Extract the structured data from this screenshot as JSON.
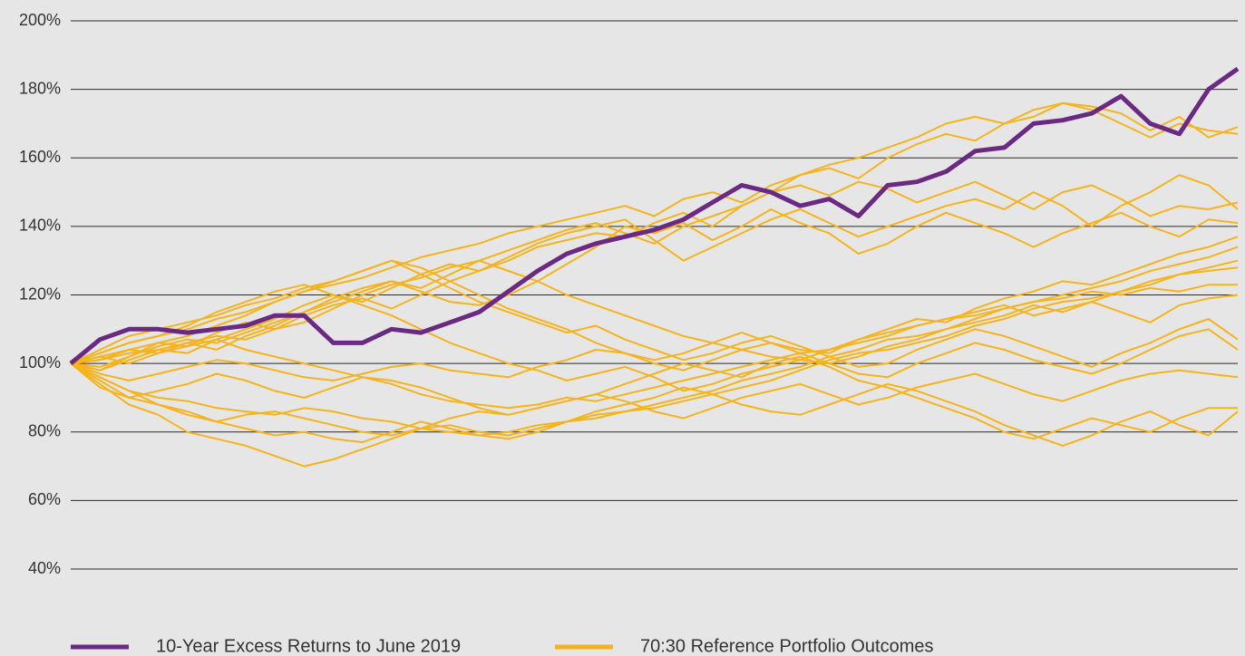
{
  "chart_data": {
    "type": "line",
    "ylim": [
      40,
      200
    ],
    "yticks": [
      {
        "value": 40,
        "label": "40%"
      },
      {
        "value": 60,
        "label": "60%"
      },
      {
        "value": 80,
        "label": "80%"
      },
      {
        "value": 100,
        "label": "100%"
      },
      {
        "value": 120,
        "label": "120%"
      },
      {
        "value": 140,
        "label": "140%"
      },
      {
        "value": 160,
        "label": "160%"
      },
      {
        "value": 180,
        "label": "180%"
      },
      {
        "value": 200,
        "label": "200%"
      }
    ],
    "grid": true,
    "legend": "bottom",
    "series": [
      {
        "name": "10-Year Excess Returns to June 2019",
        "color": "#6b2a82",
        "values": [
          100,
          107,
          110,
          110,
          109,
          110,
          111,
          114,
          114,
          106,
          106,
          110,
          109,
          112,
          115,
          121,
          127,
          132,
          135,
          137,
          139,
          142,
          147,
          152,
          150,
          146,
          148,
          143,
          152,
          153,
          156,
          162,
          163,
          170,
          171,
          173,
          178,
          170,
          167,
          180,
          186
        ]
      },
      {
        "name": "70:30 Reference Portfolio Outcomes",
        "color": "#f5b41e",
        "values": [
          100,
          103,
          106,
          108,
          110,
          113,
          115,
          118,
          121,
          123,
          125,
          128,
          131,
          133,
          135,
          138,
          140,
          142,
          144,
          146,
          143,
          148,
          150,
          147,
          152,
          155,
          158,
          160,
          163,
          166,
          170,
          172,
          170,
          174,
          176,
          175,
          173,
          168,
          172,
          166,
          169
        ]
      },
      {
        "color": "#f5b41e",
        "values": [
          100,
          101,
          104,
          106,
          105,
          109,
          112,
          110,
          114,
          117,
          119,
          116,
          120,
          124,
          127,
          130,
          134,
          136,
          138,
          137,
          141,
          144,
          140,
          146,
          150,
          155,
          157,
          154,
          160,
          164,
          167,
          165,
          170,
          172,
          176,
          174,
          170,
          166,
          170,
          168,
          167
        ]
      },
      {
        "color": "#f5b41e",
        "values": [
          100,
          99,
          102,
          105,
          107,
          106,
          109,
          112,
          115,
          118,
          121,
          124,
          122,
          126,
          130,
          133,
          136,
          139,
          141,
          138,
          135,
          140,
          143,
          146,
          150,
          152,
          149,
          153,
          151,
          147,
          150,
          153,
          149,
          145,
          150,
          152,
          148,
          143,
          146,
          145,
          147
        ]
      },
      {
        "color": "#f5b41e",
        "values": [
          100,
          98,
          101,
          104,
          103,
          107,
          110,
          113,
          117,
          120,
          118,
          122,
          126,
          129,
          127,
          131,
          135,
          138,
          140,
          142,
          136,
          130,
          134,
          138,
          142,
          145,
          141,
          137,
          140,
          143,
          146,
          148,
          145,
          150,
          146,
          140,
          146,
          150,
          155,
          152,
          145
        ]
      },
      {
        "color": "#f5b41e",
        "values": [
          100,
          102,
          100,
          103,
          106,
          104,
          108,
          111,
          115,
          119,
          122,
          124,
          121,
          118,
          117,
          120,
          124,
          129,
          134,
          140,
          138,
          141,
          136,
          140,
          145,
          141,
          138,
          132,
          135,
          140,
          144,
          141,
          138,
          134,
          138,
          141,
          144,
          140,
          137,
          142,
          141
        ]
      },
      {
        "color": "#f5b41e",
        "values": [
          100,
          97,
          95,
          97,
          99,
          101,
          100,
          98,
          96,
          95,
          97,
          99,
          100,
          98,
          97,
          96,
          99,
          101,
          104,
          103,
          100,
          98,
          101,
          104,
          106,
          104,
          103,
          107,
          110,
          113,
          112,
          116,
          119,
          121,
          124,
          123,
          126,
          129,
          132,
          134,
          137
        ]
      },
      {
        "color": "#f5b41e",
        "values": [
          100,
          95,
          90,
          88,
          86,
          83,
          85,
          86,
          84,
          82,
          80,
          79,
          81,
          82,
          80,
          79,
          81,
          83,
          84,
          86,
          88,
          90,
          92,
          95,
          97,
          99,
          102,
          104,
          107,
          108,
          110,
          113,
          116,
          118,
          120,
          122,
          124,
          127,
          129,
          131,
          134
        ]
      },
      {
        "color": "#f5b41e",
        "values": [
          100,
          96,
          92,
          90,
          89,
          87,
          86,
          85,
          87,
          86,
          84,
          83,
          81,
          80,
          79,
          80,
          82,
          83,
          85,
          86,
          87,
          89,
          91,
          93,
          95,
          98,
          101,
          103,
          104,
          106,
          108,
          111,
          113,
          116,
          118,
          119,
          121,
          124,
          126,
          128,
          130
        ]
      },
      {
        "color": "#f5b41e",
        "values": [
          100,
          101,
          103,
          104,
          106,
          108,
          107,
          110,
          112,
          116,
          120,
          123,
          125,
          128,
          130,
          127,
          124,
          120,
          117,
          114,
          111,
          108,
          106,
          104,
          102,
          101,
          100,
          102,
          105,
          107,
          110,
          112,
          114,
          117,
          115,
          118,
          121,
          123,
          126,
          127,
          128
        ]
      },
      {
        "color": "#f5b41e",
        "values": [
          100,
          102,
          104,
          103,
          105,
          107,
          104,
          102,
          100,
          98,
          96,
          94,
          91,
          89,
          88,
          87,
          88,
          90,
          89,
          91,
          93,
          95,
          97,
          99,
          101,
          103,
          104,
          106,
          108,
          111,
          113,
          114,
          116,
          118,
          119,
          121,
          120,
          122,
          121,
          123,
          123
        ]
      },
      {
        "color": "#f5b41e",
        "values": [
          100,
          103,
          106,
          108,
          111,
          115,
          118,
          121,
          123,
          120,
          117,
          114,
          110,
          106,
          103,
          100,
          98,
          95,
          97,
          99,
          96,
          92,
          94,
          97,
          99,
          101,
          104,
          107,
          109,
          111,
          113,
          115,
          117,
          114,
          116,
          118,
          115,
          112,
          117,
          119,
          120
        ]
      },
      {
        "color": "#f5b41e",
        "values": [
          100,
          104,
          108,
          110,
          112,
          114,
          117,
          119,
          122,
          124,
          127,
          130,
          126,
          122,
          118,
          115,
          112,
          109,
          111,
          107,
          104,
          101,
          103,
          106,
          108,
          105,
          102,
          99,
          100,
          104,
          107,
          110,
          108,
          105,
          102,
          99,
          103,
          106,
          110,
          113,
          107
        ]
      },
      {
        "color": "#f5b41e",
        "values": [
          100,
          98,
          102,
          106,
          108,
          111,
          114,
          118,
          121,
          124,
          127,
          130,
          128,
          124,
          120,
          116,
          113,
          110,
          106,
          103,
          101,
          103,
          106,
          109,
          106,
          103,
          100,
          97,
          96,
          100,
          103,
          106,
          104,
          101,
          99,
          97,
          100,
          104,
          108,
          110,
          104
        ]
      },
      {
        "color": "#f5b41e",
        "values": [
          100,
          93,
          90,
          92,
          94,
          97,
          95,
          92,
          90,
          93,
          96,
          95,
          93,
          90,
          87,
          85,
          87,
          89,
          91,
          89,
          86,
          84,
          87,
          90,
          92,
          94,
          91,
          88,
          90,
          93,
          95,
          97,
          94,
          91,
          89,
          92,
          95,
          97,
          98,
          97,
          96
        ]
      },
      {
        "color": "#f5b41e",
        "values": [
          100,
          94,
          88,
          85,
          80,
          78,
          76,
          73,
          70,
          72,
          75,
          78,
          81,
          84,
          86,
          85,
          87,
          89,
          91,
          94,
          97,
          100,
          98,
          96,
          100,
          102,
          99,
          95,
          93,
          90,
          87,
          84,
          80,
          78,
          81,
          84,
          82,
          80,
          84,
          87,
          87
        ]
      },
      {
        "color": "#f5b41e",
        "values": [
          100,
          96,
          92,
          88,
          85,
          83,
          81,
          79,
          80,
          78,
          77,
          80,
          83,
          81,
          79,
          78,
          80,
          83,
          86,
          88,
          90,
          93,
          91,
          88,
          86,
          85,
          88,
          91,
          94,
          92,
          89,
          86,
          82,
          79,
          76,
          79,
          83,
          86,
          82,
          79,
          86
        ]
      }
    ]
  }
}
